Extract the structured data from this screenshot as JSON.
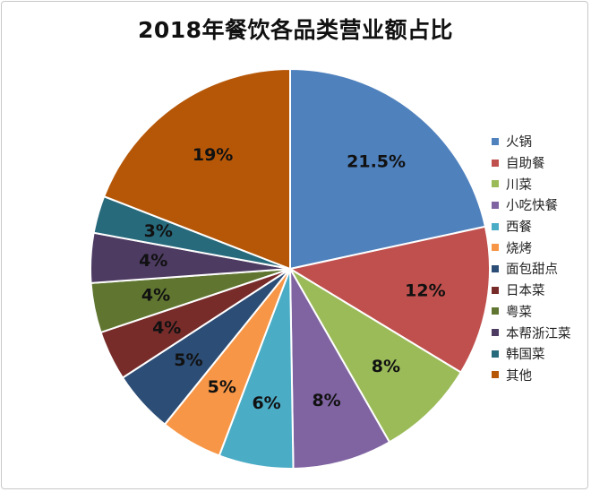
{
  "chart_data": {
    "type": "pie",
    "title": "2018年餐饮各品类营业额占比",
    "legend_position": "right",
    "start_angle": "top",
    "direction": "clockwise",
    "slices": [
      {
        "name": "火锅",
        "value": 21.5,
        "label": "21.5%",
        "color": "#4F81BD"
      },
      {
        "name": "自助餐",
        "value": 12,
        "label": "12%",
        "color": "#C0504D"
      },
      {
        "name": "川菜",
        "value": 8,
        "label": "8%",
        "color": "#9BBB59"
      },
      {
        "name": "小吃快餐",
        "value": 8,
        "label": "8%",
        "color": "#8064A2"
      },
      {
        "name": "西餐",
        "value": 6,
        "label": "6%",
        "color": "#4BACC6"
      },
      {
        "name": "烧烤",
        "value": 5,
        "label": "5%",
        "color": "#F79646"
      },
      {
        "name": "面包甜点",
        "value": 5,
        "label": "5%",
        "color": "#2C4D75"
      },
      {
        "name": "日本菜",
        "value": 4,
        "label": "4%",
        "color": "#772C2A"
      },
      {
        "name": "粤菜",
        "value": 4,
        "label": "4%",
        "color": "#5F7530"
      },
      {
        "name": "本帮浙江菜",
        "value": 4,
        "label": "4%",
        "color": "#4D3B62"
      },
      {
        "name": "韩国菜",
        "value": 3,
        "label": "3%",
        "color": "#276A7C"
      },
      {
        "name": "其他",
        "value": 19,
        "label": "19%",
        "color": "#B65708"
      }
    ]
  }
}
